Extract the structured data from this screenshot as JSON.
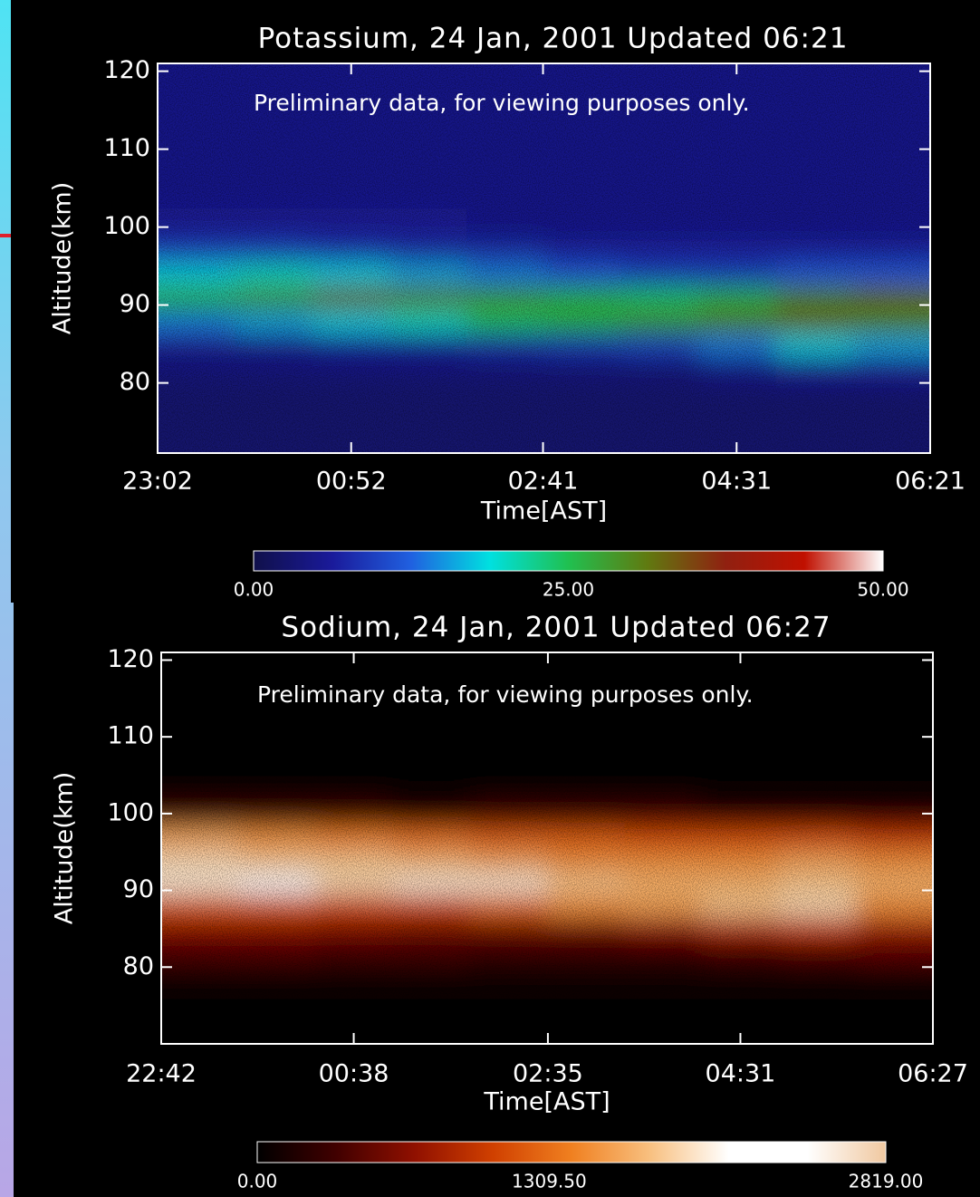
{
  "chart_data": [
    {
      "type": "heatmap",
      "title": "Potassium, 24 Jan, 2001 Updated 06:21",
      "annotation": "Preliminary data, for viewing purposes only.",
      "x_label": "Time[AST]",
      "y_label": "Altitude(km)",
      "xlim": [
        0,
        439
      ],
      "xticks": [
        {
          "value": 0,
          "label": "23:02"
        },
        {
          "value": 110,
          "label": "00:52"
        },
        {
          "value": 219,
          "label": "02:41"
        },
        {
          "value": 329,
          "label": "04:31"
        },
        {
          "value": 439,
          "label": "06:21"
        }
      ],
      "ylim": [
        71,
        121
      ],
      "yticks": [
        80,
        90,
        100,
        110,
        120
      ],
      "rows": [
        74,
        78,
        82,
        85,
        88,
        91,
        94,
        97,
        100,
        105,
        111,
        117
      ],
      "values": [
        [
          3,
          3,
          3,
          3,
          3,
          3,
          3,
          3,
          3,
          3
        ],
        [
          3,
          3,
          3,
          3,
          3,
          3,
          3,
          3,
          3,
          3
        ],
        [
          4,
          4,
          4,
          4,
          4,
          4,
          4,
          5,
          6,
          6
        ],
        [
          6,
          6,
          7,
          7,
          8,
          9,
          10,
          14,
          18,
          16
        ],
        [
          14,
          16,
          18,
          20,
          24,
          26,
          28,
          30,
          32,
          30
        ],
        [
          26,
          28,
          32,
          30,
          28,
          26,
          24,
          26,
          30,
          32
        ],
        [
          18,
          20,
          18,
          16,
          14,
          12,
          10,
          10,
          12,
          12
        ],
        [
          10,
          10,
          9,
          8,
          8,
          7,
          7,
          7,
          7,
          7
        ],
        [
          6,
          6,
          6,
          6,
          5,
          5,
          5,
          5,
          5,
          5
        ],
        [
          5,
          5,
          5,
          5,
          5,
          5,
          5,
          5,
          5,
          5
        ],
        [
          5,
          5,
          5,
          5,
          5,
          5,
          5,
          5,
          5,
          5
        ],
        [
          5,
          5,
          5,
          5,
          5,
          5,
          5,
          5,
          5,
          5
        ]
      ],
      "clim": [
        0,
        50
      ],
      "colormap": [
        "#10104a",
        "#1a1a9a",
        "#2060e0",
        "#00e0e0",
        "#20c050",
        "#607a10",
        "#902010",
        "#c01000",
        "#ffffff"
      ],
      "colorbar_ticks": [
        {
          "value": 0,
          "label": "0.00"
        },
        {
          "value": 25,
          "label": "25.00"
        },
        {
          "value": 50,
          "label": "50.00"
        }
      ]
    },
    {
      "type": "heatmap",
      "title": "Sodium, 24 Jan, 2001 Updated 06:27",
      "annotation": "Preliminary data, for viewing purposes only.",
      "x_label": "Time[AST]",
      "y_label": "Altitude(km)",
      "xlim": [
        0,
        465
      ],
      "xticks": [
        {
          "value": 0,
          "label": "22:42"
        },
        {
          "value": 116,
          "label": "00:38"
        },
        {
          "value": 233,
          "label": "02:35"
        },
        {
          "value": 349,
          "label": "04:31"
        },
        {
          "value": 465,
          "label": "06:27"
        }
      ],
      "ylim": [
        70,
        121
      ],
      "yticks": [
        80,
        90,
        100,
        110,
        120
      ],
      "rows": [
        74,
        78,
        82,
        85,
        88,
        91,
        94,
        97,
        100,
        105,
        111,
        117
      ],
      "values": [
        [
          0,
          0,
          0,
          0,
          0,
          0,
          0,
          0,
          0,
          0
        ],
        [
          50,
          50,
          50,
          50,
          50,
          50,
          50,
          50,
          50,
          50
        ],
        [
          400,
          400,
          350,
          350,
          300,
          300,
          300,
          350,
          400,
          450
        ],
        [
          700,
          700,
          650,
          600,
          600,
          600,
          700,
          900,
          1000,
          800
        ],
        [
          1200,
          1200,
          1100,
          1100,
          1300,
          1500,
          1600,
          1800,
          1900,
          1500
        ],
        [
          2000,
          2100,
          1900,
          2000,
          2000,
          1800,
          1700,
          1700,
          1800,
          1700
        ],
        [
          1900,
          1800,
          1800,
          1700,
          1600,
          1500,
          1500,
          1500,
          1600,
          1500
        ],
        [
          1600,
          1500,
          1400,
          1300,
          1200,
          1200,
          1100,
          1100,
          1100,
          1000
        ],
        [
          300,
          300,
          300,
          200,
          300,
          300,
          300,
          200,
          200,
          200
        ],
        [
          0,
          0,
          0,
          0,
          0,
          0,
          0,
          0,
          0,
          0
        ],
        [
          0,
          0,
          0,
          0,
          0,
          0,
          0,
          0,
          0,
          0
        ],
        [
          0,
          0,
          0,
          0,
          0,
          0,
          0,
          0,
          0,
          0
        ]
      ],
      "clim": [
        0,
        2819
      ],
      "colormap": [
        "#000000",
        "#400000",
        "#901000",
        "#d04000",
        "#f08020",
        "#f8c080",
        "#ffffff",
        "#ffffff",
        "#f0c8a0"
      ],
      "colorbar_ticks": [
        {
          "value": 0,
          "label": "0.00"
        },
        {
          "value": 1309.5,
          "label": "1309.50"
        },
        {
          "value": 2819,
          "label": "2819.00"
        }
      ]
    }
  ]
}
